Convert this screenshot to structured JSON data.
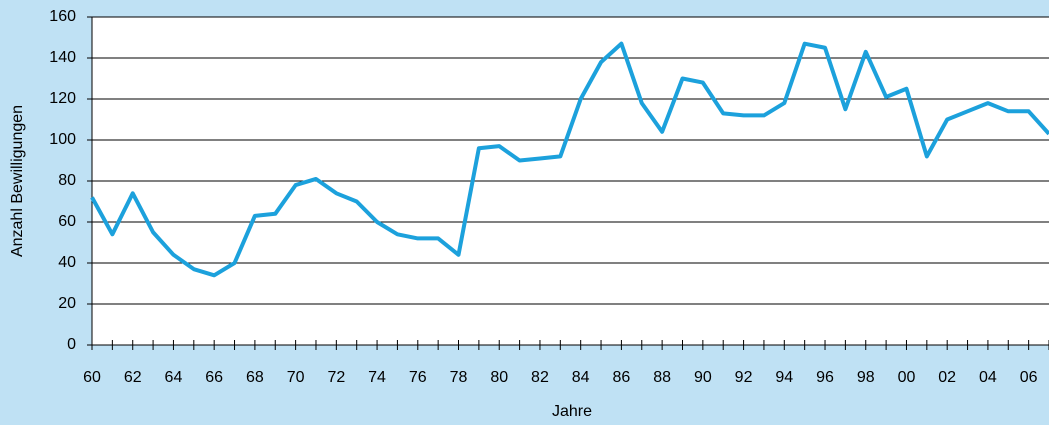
{
  "chart_data": {
    "type": "line",
    "x_label": "Jahre",
    "y_label": "Anzahl Bewilligungen",
    "categories": [
      "60",
      null,
      "62",
      null,
      "64",
      null,
      "66",
      null,
      "68",
      null,
      "70",
      null,
      "72",
      null,
      "74",
      null,
      "76",
      null,
      "78",
      null,
      "80",
      null,
      "82",
      null,
      "84",
      null,
      "86",
      null,
      "88",
      null,
      "90",
      null,
      "92",
      null,
      "94",
      null,
      "96",
      null,
      "98",
      null,
      "00",
      null,
      "02",
      null,
      "04",
      null,
      "06",
      null
    ],
    "values": [
      72,
      54,
      74,
      55,
      44,
      37,
      34,
      40,
      63,
      64,
      78,
      81,
      74,
      70,
      60,
      54,
      52,
      52,
      44,
      96,
      97,
      90,
      91,
      92,
      120,
      138,
      147,
      118,
      104,
      130,
      128,
      113,
      112,
      112,
      118,
      147,
      145,
      115,
      143,
      121,
      125,
      92,
      110,
      114,
      118,
      114,
      114,
      103
    ],
    "color": "#1ca1dc",
    "ylim": [
      0,
      160
    ],
    "yticks": [
      0,
      20,
      40,
      60,
      80,
      100,
      120,
      140,
      160
    ],
    "grid": true
  }
}
